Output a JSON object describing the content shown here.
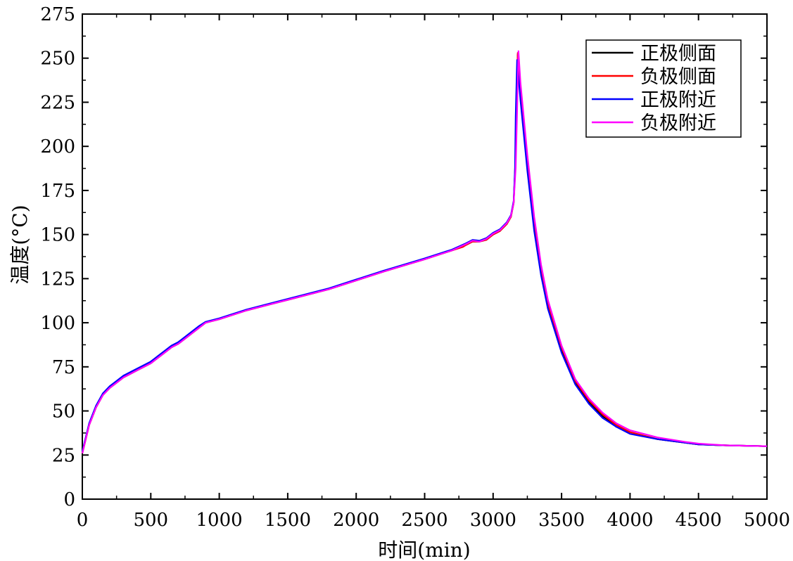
{
  "chart_data": {
    "type": "line",
    "title": "",
    "xlabel": "时间(min)",
    "ylabel": "温度(°C)",
    "xlim": [
      0,
      5000
    ],
    "ylim": [
      0,
      275
    ],
    "xticks": [
      0,
      500,
      1000,
      1500,
      2000,
      2500,
      3000,
      3500,
      4000,
      4500,
      5000
    ],
    "yticks": [
      0,
      25,
      50,
      75,
      100,
      125,
      150,
      175,
      200,
      225,
      250,
      275
    ],
    "grid": false,
    "legend_position": "top-right",
    "series": [
      {
        "name": "正极侧面",
        "color": "#000000",
        "x": [
          0,
          50,
          100,
          150,
          200,
          250,
          300,
          350,
          400,
          450,
          500,
          550,
          600,
          650,
          700,
          750,
          800,
          850,
          900,
          1000,
          1200,
          1500,
          1800,
          2000,
          2200,
          2500,
          2700,
          2800,
          2850,
          2900,
          2950,
          3000,
          3050,
          3100,
          3130,
          3150,
          3160,
          3170,
          3180,
          3200,
          3250,
          3300,
          3350,
          3400,
          3500,
          3600,
          3700,
          3800,
          3900,
          4000,
          4200,
          4400,
          4500,
          4700,
          5000
        ],
        "y": [
          26,
          42,
          52,
          59,
          63,
          66,
          69,
          71,
          73,
          75,
          77,
          80,
          83,
          86,
          88,
          91,
          94,
          97,
          100,
          102,
          107,
          113,
          119,
          124,
          129,
          136,
          141,
          144,
          146,
          146,
          147,
          150,
          152,
          156,
          160,
          168,
          185,
          215,
          252,
          230,
          190,
          156,
          130,
          110,
          85,
          66,
          55,
          47,
          41,
          38,
          34,
          32,
          31,
          30.5,
          30
        ]
      },
      {
        "name": "负极侧面",
        "color": "#ff0000",
        "x": [
          0,
          50,
          100,
          150,
          200,
          250,
          300,
          350,
          400,
          450,
          500,
          550,
          600,
          650,
          700,
          750,
          800,
          850,
          900,
          1000,
          1200,
          1500,
          1800,
          2000,
          2200,
          2500,
          2700,
          2780,
          2800,
          2850,
          2900,
          2950,
          3000,
          3050,
          3100,
          3130,
          3150,
          3160,
          3170,
          3180,
          3200,
          3250,
          3300,
          3350,
          3400,
          3500,
          3600,
          3700,
          3800,
          3900,
          4000,
          4200,
          4400,
          4500,
          4700,
          5000
        ],
        "y": [
          26,
          42,
          52,
          59,
          63,
          66,
          69,
          71,
          73,
          75,
          77,
          80,
          83,
          86,
          88,
          91,
          94,
          97,
          100,
          102,
          107,
          113,
          119,
          124,
          129,
          136,
          141,
          143,
          144,
          146,
          146,
          147,
          150,
          152,
          156,
          160,
          168,
          185,
          215,
          253,
          232,
          191,
          157,
          131,
          111,
          86,
          67,
          56,
          48,
          42,
          38,
          34,
          32,
          31,
          30.5,
          30
        ]
      },
      {
        "name": "正极附近",
        "color": "#0000ff",
        "x": [
          0,
          50,
          100,
          150,
          200,
          250,
          300,
          350,
          400,
          450,
          500,
          550,
          600,
          650,
          700,
          750,
          800,
          850,
          900,
          1000,
          1200,
          1500,
          1800,
          2000,
          2200,
          2500,
          2700,
          2800,
          2850,
          2900,
          2950,
          3000,
          3050,
          3100,
          3130,
          3150,
          3160,
          3165,
          3175,
          3200,
          3250,
          3300,
          3350,
          3400,
          3500,
          3600,
          3700,
          3800,
          3900,
          4000,
          4200,
          4400,
          4500,
          4700,
          5000
        ],
        "y": [
          27,
          43,
          53,
          60,
          64,
          67,
          70,
          72,
          74,
          76,
          78,
          81,
          84,
          87,
          89,
          92,
          95,
          98,
          100.5,
          102.5,
          107.5,
          113.5,
          119.5,
          124.5,
          129.5,
          136.5,
          141.5,
          145,
          147,
          146.5,
          148,
          151,
          153,
          157,
          161,
          169,
          187,
          217,
          249,
          226,
          186,
          152,
          127,
          108,
          83,
          65,
          54,
          46,
          41,
          37,
          34,
          32,
          31,
          30.5,
          30
        ]
      },
      {
        "name": "负极附近",
        "color": "#ff00ff",
        "x": [
          0,
          50,
          100,
          150,
          200,
          250,
          300,
          350,
          400,
          450,
          500,
          550,
          600,
          650,
          700,
          750,
          800,
          850,
          900,
          1000,
          1200,
          1500,
          1800,
          2000,
          2200,
          2500,
          2700,
          2800,
          2850,
          2900,
          2950,
          3000,
          3050,
          3100,
          3130,
          3150,
          3165,
          3175,
          3185,
          3200,
          3250,
          3300,
          3350,
          3400,
          3500,
          3600,
          3700,
          3800,
          3900,
          4000,
          4200,
          4400,
          4500,
          4700,
          5000
        ],
        "y": [
          26,
          42,
          52,
          59,
          63,
          66,
          69,
          71,
          73,
          75,
          77,
          80,
          83,
          86,
          88,
          91,
          94,
          97,
          100,
          102,
          107,
          113,
          119,
          124,
          129,
          136,
          141,
          144.5,
          146.5,
          146,
          147.5,
          150.5,
          152.5,
          156.5,
          160.5,
          168,
          188,
          220,
          254,
          236,
          195,
          160,
          133,
          113,
          87,
          68,
          57,
          49,
          43,
          39,
          35,
          32.5,
          31.5,
          30.5,
          30
        ]
      }
    ]
  }
}
